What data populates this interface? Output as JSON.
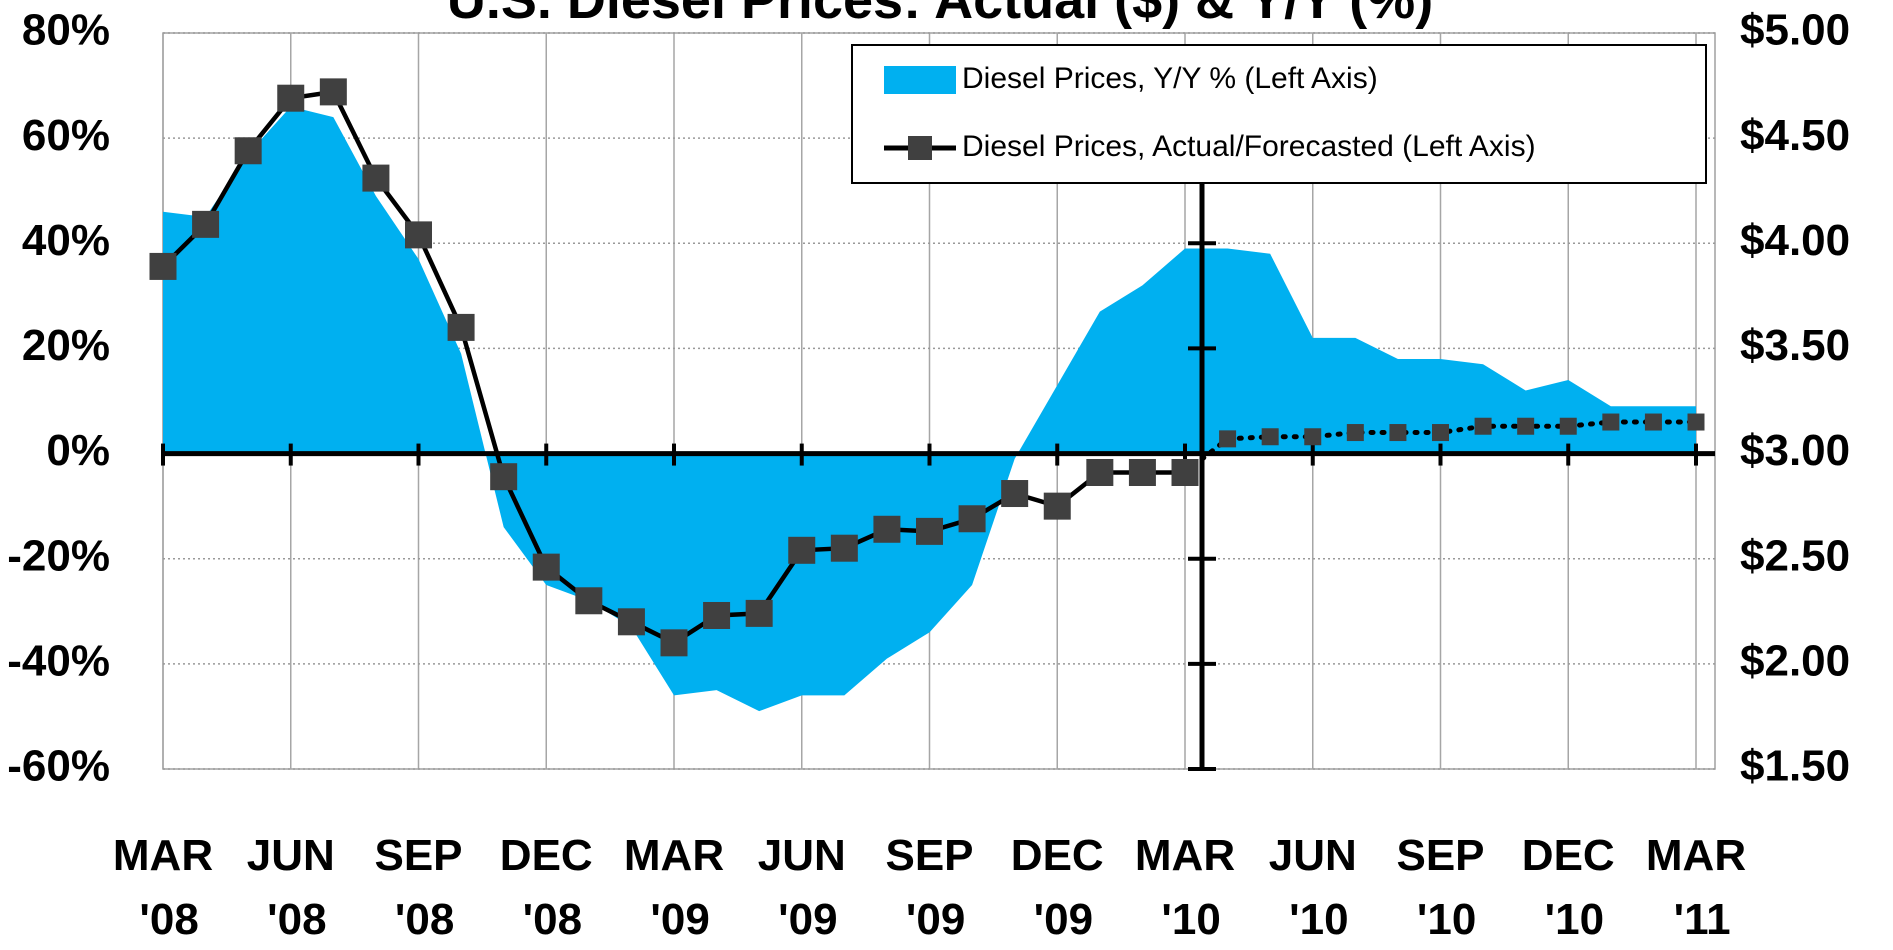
{
  "chart_data": {
    "type": "area",
    "title": "U.S. Diesel Prices: Actual ($) & Y/Y (%)",
    "categories": [
      "MAR '08",
      null,
      null,
      "JUN '08",
      null,
      null,
      "SEP '08",
      null,
      null,
      "DEC '08",
      null,
      null,
      "MAR '09",
      null,
      null,
      "JUN '09",
      null,
      null,
      "SEP '09",
      null,
      null,
      "DEC '09",
      null,
      null,
      "MAR '10",
      null,
      null,
      "JUN '10",
      null,
      null,
      "SEP '10",
      null,
      null,
      "DEC '10",
      null,
      null,
      "MAR '11"
    ],
    "series": [
      {
        "name": "Diesel Prices, Y/Y % (Left Axis)",
        "type": "area",
        "color": "#00b0f0",
        "values": [
          46,
          45,
          57,
          66,
          64,
          49,
          37,
          19,
          -14,
          -25,
          -28,
          -33,
          -46,
          -45,
          -49,
          -46,
          -46,
          -39,
          -34,
          -25,
          -1,
          13,
          27,
          32,
          39,
          39,
          38,
          22,
          22,
          18,
          18,
          17,
          12,
          14,
          9,
          9,
          9
        ]
      },
      {
        "name": "Diesel Prices, Actual/Forecasted (Left Axis)",
        "type": "line",
        "axis": "y2",
        "color": "#000000",
        "marker_color": "#404040",
        "values": [
          3.89,
          4.09,
          4.44,
          4.69,
          4.72,
          4.31,
          4.04,
          3.6,
          2.89,
          2.46,
          2.3,
          2.2,
          2.1,
          2.23,
          2.24,
          2.54,
          2.55,
          2.64,
          2.63,
          2.69,
          2.81,
          2.75,
          2.91,
          2.91,
          2.91,
          3.07,
          3.08,
          3.08,
          3.1,
          3.1,
          3.1,
          3.13,
          3.13,
          3.13,
          3.15,
          3.15,
          3.15
        ]
      }
    ],
    "forecast_start_index": 24,
    "ylim": [
      -60,
      80
    ],
    "yticks": [
      {
        "value": -60,
        "label": "-60%"
      },
      {
        "value": -40,
        "label": "-40%"
      },
      {
        "value": -20,
        "label": "-20%"
      },
      {
        "value": 0,
        "label": "0%"
      },
      {
        "value": 20,
        "label": "20%"
      },
      {
        "value": 40,
        "label": "40%"
      },
      {
        "value": 60,
        "label": "60%"
      },
      {
        "value": 80,
        "label": "80%"
      }
    ],
    "y2lim": [
      1.5,
      5
    ],
    "y2ticks": [
      {
        "value": 1.5,
        "label": "$1.50"
      },
      {
        "value": 2,
        "label": "$2.00"
      },
      {
        "value": 2.5,
        "label": "$2.50"
      },
      {
        "value": 3,
        "label": "$3.00"
      },
      {
        "value": 3.5,
        "label": "$3.50"
      },
      {
        "value": 4,
        "label": "$4.00"
      },
      {
        "value": 4.5,
        "label": "$4.50"
      },
      {
        "value": 5,
        "label": "$5.00"
      }
    ],
    "grid": true,
    "legend": "top-right"
  }
}
